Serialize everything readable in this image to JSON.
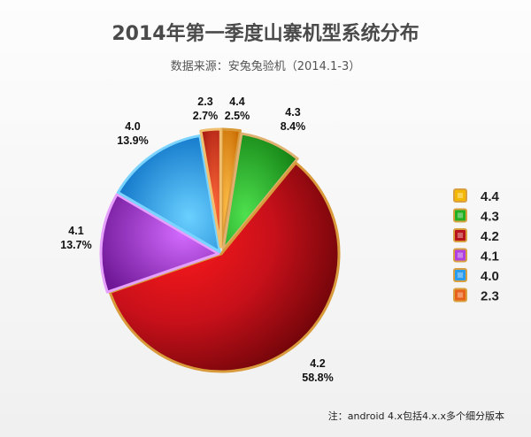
{
  "chart_data": {
    "type": "pie",
    "title": "2014年第一季度山寨机型系统分布",
    "subtitle": "数据来源：安兔兔验机（2014.1-3）",
    "note": "注：android 4.x包括4.x.x多个细分版本",
    "slices": [
      {
        "label": "4.4",
        "value": 2.5,
        "percent": "2.5%",
        "color": "#f29a1e"
      },
      {
        "label": "4.3",
        "value": 8.4,
        "percent": "8.4%",
        "color": "#22b022"
      },
      {
        "label": "4.2",
        "value": 58.8,
        "percent": "58.8%",
        "color": "#d0121a"
      },
      {
        "label": "4.1",
        "value": 13.7,
        "percent": "13.7%",
        "color": "#a52ad6"
      },
      {
        "label": "4.0",
        "value": 13.9,
        "percent": "13.9%",
        "color": "#1e90e6"
      },
      {
        "label": "2.3",
        "value": 2.7,
        "percent": "2.7%",
        "color": "#e23c1c"
      }
    ],
    "legend": {
      "position": "right",
      "entries": [
        {
          "label": "4.4",
          "color": "#f4b800"
        },
        {
          "label": "4.3",
          "color": "#22b022"
        },
        {
          "label": "4.2",
          "color": "#b8121a"
        },
        {
          "label": "4.1",
          "color": "#b040e0"
        },
        {
          "label": "4.0",
          "color": "#2a9cf0"
        },
        {
          "label": "2.3",
          "color": "#e8601a"
        }
      ]
    }
  }
}
